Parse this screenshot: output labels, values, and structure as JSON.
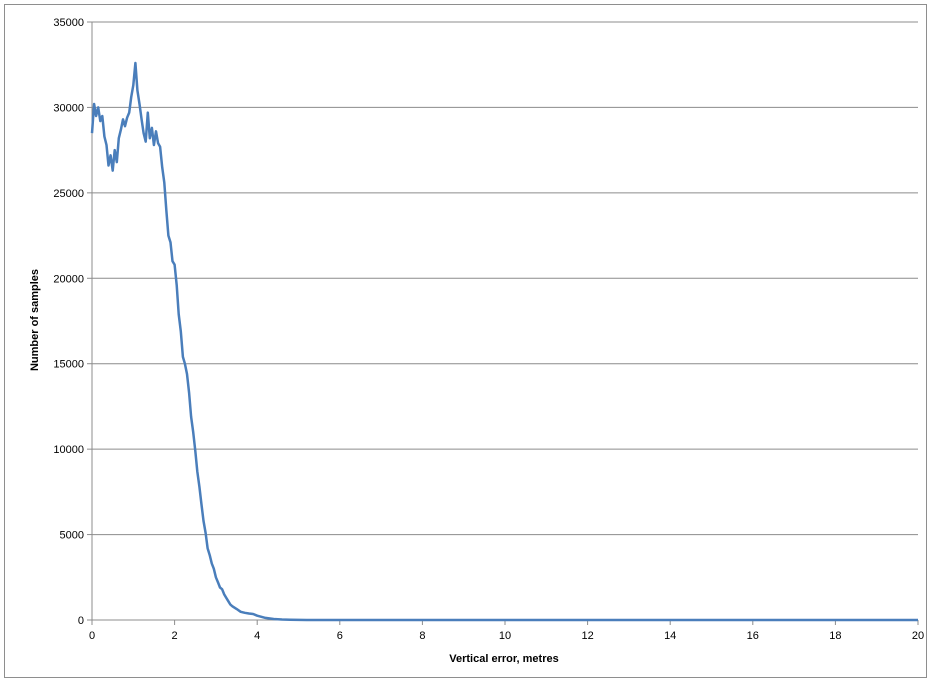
{
  "chart_data": {
    "type": "line",
    "title": "",
    "xlabel": "Vertical error, metres",
    "ylabel": "Number of samples",
    "xlim": [
      0,
      20
    ],
    "ylim": [
      0,
      35000
    ],
    "xticks": [
      0,
      2,
      4,
      6,
      8,
      10,
      12,
      14,
      16,
      18,
      20
    ],
    "yticks": [
      0,
      5000,
      10000,
      15000,
      20000,
      25000,
      30000,
      35000
    ],
    "grid": "horizontal",
    "legend": "none",
    "series": [
      {
        "color": "#4a7ebb",
        "x": [
          0,
          0.05,
          0.1,
          0.15,
          0.2,
          0.25,
          0.3,
          0.35,
          0.4,
          0.45,
          0.5,
          0.55,
          0.6,
          0.65,
          0.7,
          0.75,
          0.8,
          0.85,
          0.9,
          0.95,
          1.0,
          1.05,
          1.1,
          1.15,
          1.2,
          1.25,
          1.3,
          1.35,
          1.4,
          1.45,
          1.5,
          1.55,
          1.6,
          1.65,
          1.7,
          1.75,
          1.8,
          1.85,
          1.9,
          1.95,
          2.0,
          2.05,
          2.1,
          2.15,
          2.2,
          2.25,
          2.3,
          2.35,
          2.4,
          2.45,
          2.5,
          2.55,
          2.6,
          2.65,
          2.7,
          2.75,
          2.8,
          2.85,
          2.9,
          2.95,
          3.0,
          3.05,
          3.1,
          3.15,
          3.2,
          3.25,
          3.3,
          3.35,
          3.4,
          3.5,
          3.6,
          3.7,
          3.8,
          3.9,
          4.0,
          4.2,
          4.4,
          4.6,
          4.8,
          5.0,
          5.2,
          5.4,
          5.6,
          5.8,
          6.0,
          8.0,
          10.0,
          12.0,
          14.0,
          16.0,
          18.0,
          20.0
        ],
        "y": [
          28500,
          30200,
          29500,
          30000,
          29200,
          29500,
          28300,
          27800,
          26600,
          27200,
          26300,
          27500,
          26800,
          28200,
          28700,
          29300,
          28900,
          29400,
          29700,
          30600,
          31300,
          32600,
          31000,
          30200,
          29300,
          28500,
          28000,
          29700,
          28200,
          28800,
          27800,
          28600,
          27900,
          27700,
          26500,
          25600,
          24000,
          22500,
          22100,
          21000,
          20800,
          19600,
          17900,
          16900,
          15400,
          15000,
          14400,
          13300,
          11900,
          11000,
          9900,
          8700,
          7800,
          6800,
          5800,
          5100,
          4200,
          3800,
          3300,
          3000,
          2500,
          2200,
          1900,
          1800,
          1500,
          1300,
          1100,
          900,
          800,
          650,
          480,
          420,
          380,
          350,
          250,
          120,
          60,
          30,
          15,
          5,
          0,
          0,
          0,
          0,
          0,
          0,
          0,
          0,
          0,
          0,
          0,
          0
        ]
      }
    ]
  }
}
